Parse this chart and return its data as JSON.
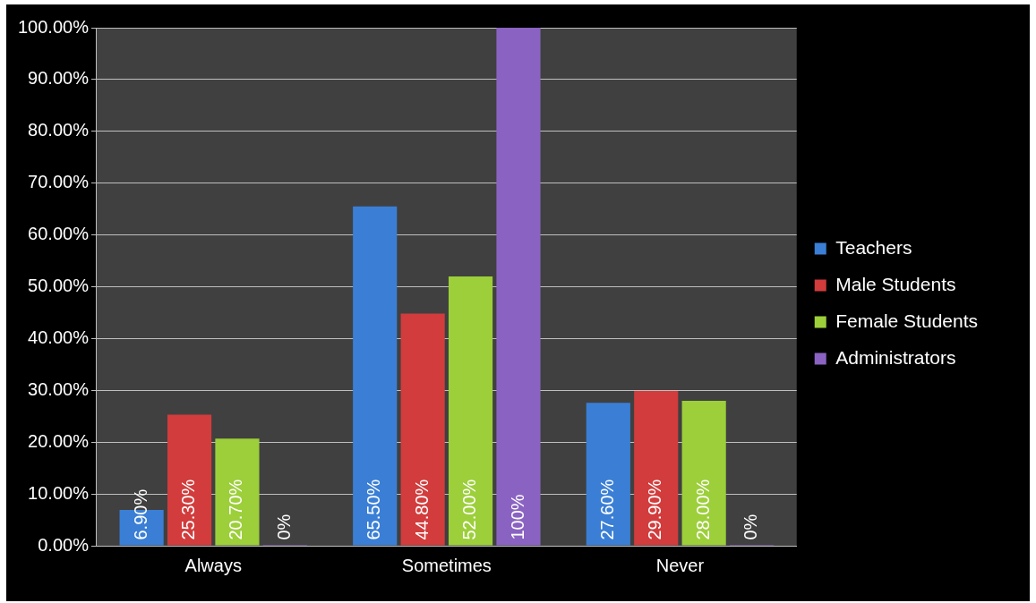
{
  "chart_data": {
    "type": "bar",
    "categories": [
      "Always",
      "Sometimes",
      "Never"
    ],
    "series": [
      {
        "name": "Teachers",
        "color": "#3a7fd5",
        "values": [
          6.9,
          65.5,
          27.6
        ],
        "value_labels": [
          "6.90%",
          "65.50%",
          "27.60%"
        ]
      },
      {
        "name": "Male Students",
        "color": "#d23c3c",
        "values": [
          25.3,
          44.8,
          29.9
        ],
        "value_labels": [
          "25.30%",
          "44.80%",
          "29.90%"
        ]
      },
      {
        "name": "Female Students",
        "color": "#9ccf3a",
        "values": [
          20.7,
          52.0,
          28.0
        ],
        "value_labels": [
          "20.70%",
          "52.00%",
          "28.00%"
        ]
      },
      {
        "name": "Administrators",
        "color": "#8a63c2",
        "values": [
          0,
          100,
          0
        ],
        "value_labels": [
          "0%",
          "100%",
          "0%"
        ]
      }
    ],
    "ylim": [
      0,
      100
    ],
    "yticks": [
      {
        "value": 0,
        "label": "0.00%"
      },
      {
        "value": 10,
        "label": "10.00%"
      },
      {
        "value": 20,
        "label": "20.00%"
      },
      {
        "value": 30,
        "label": "30.00%"
      },
      {
        "value": 40,
        "label": "40.00%"
      },
      {
        "value": 50,
        "label": "50.00%"
      },
      {
        "value": 60,
        "label": "60.00%"
      },
      {
        "value": 70,
        "label": "70.00%"
      },
      {
        "value": 80,
        "label": "80.00%"
      },
      {
        "value": 90,
        "label": "90.00%"
      },
      {
        "value": 100,
        "label": "100.00%"
      }
    ],
    "grid": "y",
    "legend": "right"
  }
}
